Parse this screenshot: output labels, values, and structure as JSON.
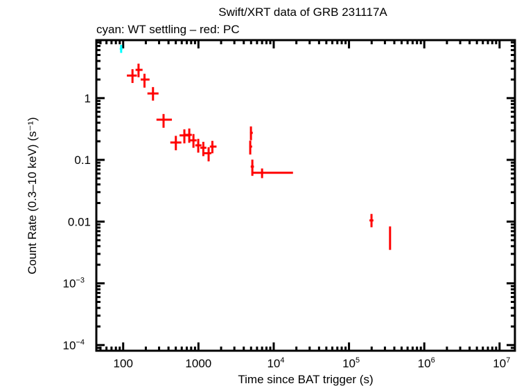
{
  "chart_data": {
    "type": "scatter",
    "title": "Swift/XRT data of GRB 231117A",
    "subtitle": "cyan: WT settling – red: PC",
    "xlabel": "Time since BAT trigger (s)",
    "ylabel": "Count Rate (0.3–10 keV) (s⁻¹)",
    "xscale": "log",
    "yscale": "log",
    "xlim": [
      44,
      16000000
    ],
    "ylim": [
      8.1e-05,
      8.7
    ],
    "grid": false,
    "x_ticks": [
      {
        "value": 100,
        "label": "100"
      },
      {
        "value": 1000,
        "label": "1000"
      },
      {
        "value": 10000,
        "label": "10",
        "exp": "4"
      },
      {
        "value": 100000,
        "label": "10",
        "exp": "5"
      },
      {
        "value": 1000000,
        "label": "10",
        "exp": "6"
      },
      {
        "value": 10000000,
        "label": "10",
        "exp": "7"
      }
    ],
    "y_ticks": [
      {
        "value": 1,
        "label": "1"
      },
      {
        "value": 0.1,
        "label": "0.1"
      },
      {
        "value": 0.01,
        "label": "0.01"
      },
      {
        "value": 0.001,
        "label": "10",
        "exp": "−3"
      },
      {
        "value": 0.0001,
        "label": "10",
        "exp": "−4"
      }
    ],
    "series": [
      {
        "name": "WT settling",
        "color": "#00ffff",
        "points": [
          {
            "x": 94,
            "xlo": 90,
            "xhi": 98,
            "y": 6.3,
            "ylo": 5.4,
            "yhi": 7.3
          }
        ]
      },
      {
        "name": "PC",
        "color": "#ff0000",
        "points": [
          {
            "x": 133,
            "xlo": 112,
            "xhi": 152,
            "y": 2.32,
            "ylo": 1.76,
            "yhi": 2.94
          },
          {
            "x": 160,
            "xlo": 146,
            "xhi": 181,
            "y": 2.87,
            "ylo": 2.18,
            "yhi": 3.62
          },
          {
            "x": 192,
            "xlo": 171,
            "xhi": 224,
            "y": 2.0,
            "ylo": 1.48,
            "yhi": 2.48
          },
          {
            "x": 249,
            "xlo": 210,
            "xhi": 295,
            "y": 1.19,
            "ylo": 0.91,
            "yhi": 1.51
          },
          {
            "x": 344,
            "xlo": 277,
            "xhi": 444,
            "y": 0.447,
            "ylo": 0.331,
            "yhi": 0.553
          },
          {
            "x": 501,
            "xlo": 423,
            "xhi": 593,
            "y": 0.191,
            "ylo": 0.143,
            "yhi": 0.245
          },
          {
            "x": 650,
            "xlo": 561,
            "xhi": 754,
            "y": 0.249,
            "ylo": 0.185,
            "yhi": 0.312
          },
          {
            "x": 755,
            "xlo": 670,
            "xhi": 817,
            "y": 0.254,
            "ylo": 0.189,
            "yhi": 0.322
          },
          {
            "x": 858,
            "xlo": 766,
            "xhi": 946,
            "y": 0.207,
            "ylo": 0.157,
            "yhi": 0.262
          },
          {
            "x": 994,
            "xlo": 907,
            "xhi": 1099,
            "y": 0.172,
            "ylo": 0.131,
            "yhi": 0.219
          },
          {
            "x": 1161,
            "xlo": 1059,
            "xhi": 1274,
            "y": 0.157,
            "ylo": 0.115,
            "yhi": 0.196
          },
          {
            "x": 1365,
            "xlo": 1177,
            "xhi": 1486,
            "y": 0.128,
            "ylo": 0.0945,
            "yhi": 0.16
          },
          {
            "x": 1531,
            "xlo": 1416,
            "xhi": 1738,
            "y": 0.164,
            "ylo": 0.128,
            "yhi": 0.203
          },
          {
            "x": 4980,
            "xlo": 4845,
            "xhi": 5270,
            "y": 0.274,
            "ylo": 0.208,
            "yhi": 0.348
          },
          {
            "x": 4875,
            "xlo": 4745,
            "xhi": 5165,
            "y": 0.164,
            "ylo": 0.122,
            "yhi": 0.205
          },
          {
            "x": 5200,
            "xlo": 4945,
            "xhi": 5460,
            "y": 0.0777,
            "ylo": 0.0551,
            "yhi": 0.101
          },
          {
            "x": 7000,
            "xlo": 5190,
            "xhi": 18030,
            "y": 0.0617,
            "ylo": 0.0506,
            "yhi": 0.0725
          },
          {
            "x": 199000,
            "xlo": 187000,
            "xhi": 211000,
            "y": 0.01045,
            "ylo": 0.0081,
            "yhi": 0.0133
          },
          {
            "x": 351000,
            "xlo": 348000,
            "xhi": 354000,
            "y": 0.0054,
            "ylo": 0.00348,
            "yhi": 0.00835
          }
        ]
      }
    ]
  }
}
